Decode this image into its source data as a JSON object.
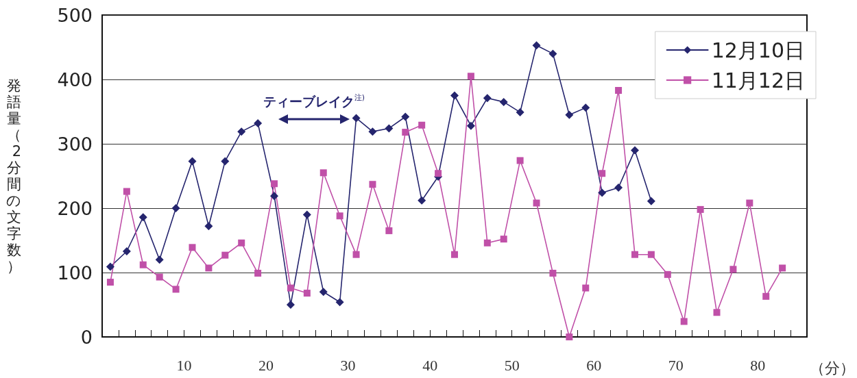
{
  "chart_data": {
    "type": "line",
    "ylabel": "発語量（2分間の文字数）",
    "xlabel": "（分）",
    "xlim": [
      0,
      86
    ],
    "xticks": [
      {
        "value": 2,
        "label": null
      },
      {
        "value": 4,
        "label": null
      },
      {
        "value": 6,
        "label": null
      },
      {
        "value": 8,
        "label": null
      },
      {
        "value": 10,
        "label": "10"
      },
      {
        "value": 12,
        "label": null
      },
      {
        "value": 14,
        "label": null
      },
      {
        "value": 16,
        "label": null
      },
      {
        "value": 18,
        "label": null
      },
      {
        "value": 20,
        "label": "20"
      },
      {
        "value": 22,
        "label": null
      },
      {
        "value": 24,
        "label": null
      },
      {
        "value": 26,
        "label": null
      },
      {
        "value": 28,
        "label": null
      },
      {
        "value": 30,
        "label": "30"
      },
      {
        "value": 32,
        "label": null
      },
      {
        "value": 34,
        "label": null
      },
      {
        "value": 36,
        "label": null
      },
      {
        "value": 38,
        "label": null
      },
      {
        "value": 40,
        "label": "40"
      },
      {
        "value": 42,
        "label": null
      },
      {
        "value": 44,
        "label": null
      },
      {
        "value": 46,
        "label": null
      },
      {
        "value": 48,
        "label": null
      },
      {
        "value": 50,
        "label": "50"
      },
      {
        "value": 52,
        "label": null
      },
      {
        "value": 54,
        "label": null
      },
      {
        "value": 56,
        "label": null
      },
      {
        "value": 58,
        "label": null
      },
      {
        "value": 60,
        "label": "60"
      },
      {
        "value": 62,
        "label": null
      },
      {
        "value": 64,
        "label": null
      },
      {
        "value": 66,
        "label": null
      },
      {
        "value": 68,
        "label": null
      },
      {
        "value": 70,
        "label": "70"
      },
      {
        "value": 72,
        "label": null
      },
      {
        "value": 74,
        "label": null
      },
      {
        "value": 76,
        "label": null
      },
      {
        "value": 78,
        "label": null
      },
      {
        "value": 80,
        "label": "80"
      },
      {
        "value": 82,
        "label": null
      },
      {
        "value": 84,
        "label": null
      }
    ],
    "ylim": [
      0,
      500
    ],
    "yticks": [
      0,
      100,
      200,
      300,
      400,
      500
    ],
    "grid": "y",
    "legend": "top right",
    "line_style": "solid",
    "annotations": [
      "ティーブレイク$^{注)}$"
    ],
    "series": [
      {
        "name": "12月10日",
        "color": "#25256e",
        "marker": "diamond",
        "x": [
          1,
          3,
          5,
          7,
          9,
          11,
          13,
          15,
          17,
          19,
          21,
          23,
          25,
          27,
          29,
          31,
          33,
          35,
          37,
          39,
          41,
          43,
          45,
          47,
          49,
          51,
          53,
          55,
          57,
          59,
          61,
          63,
          65,
          67
        ],
        "values": [
          109,
          133,
          186,
          120,
          200,
          273,
          172,
          273,
          319,
          332,
          219,
          50,
          190,
          70,
          54,
          340,
          319,
          324,
          342,
          212,
          249,
          375,
          328,
          371,
          365,
          349,
          453,
          440,
          345,
          356,
          224,
          232,
          290,
          211
        ]
      },
      {
        "name": "11月12日",
        "color": "#c050a8",
        "marker": "square",
        "x": [
          1,
          3,
          5,
          7,
          9,
          11,
          13,
          15,
          17,
          19,
          21,
          23,
          25,
          27,
          29,
          31,
          33,
          35,
          37,
          39,
          41,
          43,
          45,
          47,
          49,
          51,
          53,
          55,
          57,
          59,
          61,
          63,
          65,
          67,
          69,
          71,
          73,
          75,
          77,
          79,
          81,
          83
        ],
        "values": [
          85,
          226,
          112,
          93,
          74,
          139,
          107,
          127,
          146,
          99,
          238,
          76,
          68,
          255,
          188,
          128,
          237,
          165,
          318,
          329,
          254,
          128,
          405,
          146,
          152,
          274,
          208,
          99,
          0,
          76,
          254,
          383,
          128,
          128,
          97,
          24,
          198,
          38,
          105,
          208,
          63,
          107
        ]
      }
    ]
  }
}
